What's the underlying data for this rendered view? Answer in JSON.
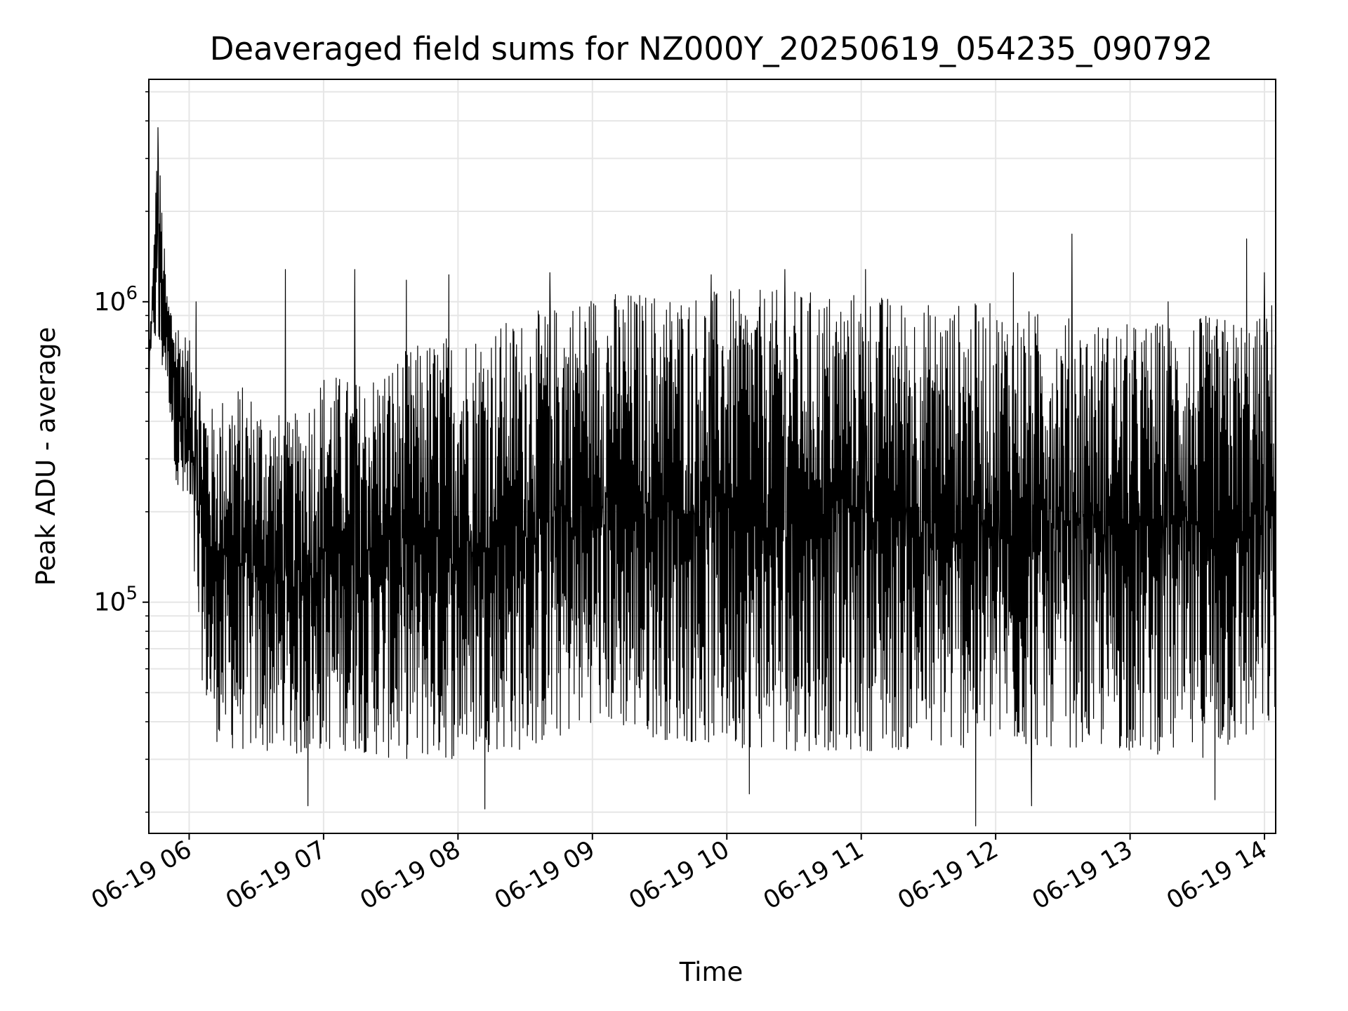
{
  "chart_data": {
    "type": "line",
    "title": "Deaveraged field sums for NZ000Y_20250619_054235_090792",
    "xlabel": "Time",
    "ylabel": "Peak ADU - average",
    "yscale": "log",
    "ylim": [
      17000,
      5500000
    ],
    "xlim": [
      "2025-06-19 05:42",
      "2025-06-19 14:05"
    ],
    "grid": true,
    "line_color": "#000000",
    "x_ticks": [
      "06-19 06",
      "06-19 07",
      "06-19 08",
      "06-19 09",
      "06-19 10",
      "06-19 11",
      "06-19 12",
      "06-19 13",
      "06-19 14"
    ],
    "y_ticks": [
      {
        "base": "10",
        "exp": "5",
        "value": 100000
      },
      {
        "base": "10",
        "exp": "6",
        "value": 1000000
      }
    ],
    "series": [
      {
        "envelope": [
          {
            "t": "2025-06-19 05:42",
            "upper": 700000,
            "lower": 450000
          },
          {
            "t": "2025-06-19 05:44",
            "upper": 1400000,
            "lower": 800000
          },
          {
            "t": "2025-06-19 05:46",
            "upper": 3800000,
            "lower": 600000
          },
          {
            "t": "2025-06-19 05:50",
            "upper": 1100000,
            "lower": 550000
          },
          {
            "t": "2025-06-19 05:55",
            "upper": 900000,
            "lower": 220000
          },
          {
            "t": "2025-06-19 06:00",
            "upper": 750000,
            "lower": 180000
          },
          {
            "t": "2025-06-19 06:05",
            "upper": 600000,
            "lower": 60000
          },
          {
            "t": "2025-06-19 06:10",
            "upper": 450000,
            "lower": 35000
          },
          {
            "t": "2025-06-19 06:20",
            "upper": 550000,
            "lower": 32000
          },
          {
            "t": "2025-06-19 06:30",
            "upper": 500000,
            "lower": 32000
          },
          {
            "t": "2025-06-19 06:45",
            "upper": 400000,
            "lower": 30000
          },
          {
            "t": "2025-06-19 07:00",
            "upper": 600000,
            "lower": 32000
          },
          {
            "t": "2025-06-19 07:15",
            "upper": 550000,
            "lower": 32000
          },
          {
            "t": "2025-06-19 07:30",
            "upper": 650000,
            "lower": 30000
          },
          {
            "t": "2025-06-19 07:45",
            "upper": 750000,
            "lower": 30000
          },
          {
            "t": "2025-06-19 08:00",
            "upper": 800000,
            "lower": 30000
          },
          {
            "t": "2025-06-19 08:15",
            "upper": 850000,
            "lower": 32000
          },
          {
            "t": "2025-06-19 08:30",
            "upper": 900000,
            "lower": 32000
          },
          {
            "t": "2025-06-19 08:45",
            "upper": 1000000,
            "lower": 35000
          },
          {
            "t": "2025-06-19 09:00",
            "upper": 1100000,
            "lower": 40000
          },
          {
            "t": "2025-06-19 09:30",
            "upper": 1100000,
            "lower": 35000
          },
          {
            "t": "2025-06-19 10:00",
            "upper": 1100000,
            "lower": 33000
          },
          {
            "t": "2025-06-19 10:30",
            "upper": 1100000,
            "lower": 32000
          },
          {
            "t": "2025-06-19 11:00",
            "upper": 1100000,
            "lower": 32000
          },
          {
            "t": "2025-06-19 11:30",
            "upper": 1000000,
            "lower": 32000
          },
          {
            "t": "2025-06-19 12:00",
            "upper": 1000000,
            "lower": 33000
          },
          {
            "t": "2025-06-19 12:30",
            "upper": 900000,
            "lower": 33000
          },
          {
            "t": "2025-06-19 13:00",
            "upper": 850000,
            "lower": 32000
          },
          {
            "t": "2025-06-19 13:30",
            "upper": 900000,
            "lower": 30000
          },
          {
            "t": "2025-06-19 14:00",
            "upper": 900000,
            "lower": 35000
          },
          {
            "t": "2025-06-19 14:05",
            "upper": 1100000,
            "lower": 40000
          }
        ],
        "spikes": [
          {
            "t": "2025-06-19 05:46",
            "y": 3800000
          },
          {
            "t": "2025-06-19 05:45",
            "y": 2300000
          },
          {
            "t": "2025-06-19 06:03",
            "upper": 1000000
          },
          {
            "t": "2025-06-19 06:43",
            "y": 1280000
          },
          {
            "t": "2025-06-19 07:14",
            "y": 1280000
          },
          {
            "t": "2025-06-19 07:37",
            "y": 1180000
          },
          {
            "t": "2025-06-19 07:56",
            "y": 1230000
          },
          {
            "t": "2025-06-19 08:41",
            "y": 1250000
          },
          {
            "t": "2025-06-19 09:53",
            "y": 1230000
          },
          {
            "t": "2025-06-19 10:26",
            "y": 1280000
          },
          {
            "t": "2025-06-19 11:02",
            "y": 1280000
          },
          {
            "t": "2025-06-19 12:08",
            "y": 1250000
          },
          {
            "t": "2025-06-19 12:34",
            "y": 1680000
          },
          {
            "t": "2025-06-19 13:17",
            "y": 1000000
          },
          {
            "t": "2025-06-19 13:52",
            "y": 1620000
          },
          {
            "t": "2025-06-19 14:00",
            "y": 1250000
          },
          {
            "t": "2025-06-19 06:53",
            "y": 21000
          },
          {
            "t": "2025-06-19 08:12",
            "y": 20500
          },
          {
            "t": "2025-06-19 11:51",
            "y": 18000
          },
          {
            "t": "2025-06-19 12:16",
            "y": 21000
          },
          {
            "t": "2025-06-19 13:38",
            "y": 22000
          },
          {
            "t": "2025-06-19 10:10",
            "y": 23000
          }
        ]
      }
    ]
  }
}
